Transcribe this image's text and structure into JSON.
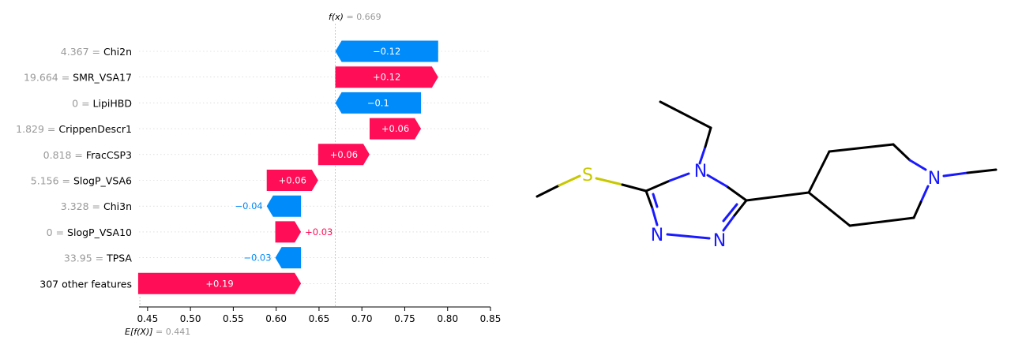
{
  "chart_data": {
    "type": "waterfall",
    "fx": {
      "label": "f(x)",
      "value": "0.669",
      "numeric": 0.669
    },
    "expected": {
      "label": "E[f(X)]",
      "value": "0.441",
      "numeric": 0.441
    },
    "xlim": [
      0.44,
      0.85
    ],
    "ticks": [
      "0.45",
      "0.50",
      "0.55",
      "0.60",
      "0.65",
      "0.70",
      "0.75",
      "0.80",
      "0.85"
    ],
    "features": [
      {
        "value": "4.367",
        "name": "Chi2n",
        "shap": -0.12,
        "label": "−0.12"
      },
      {
        "value": "19.664",
        "name": "SMR_VSA17",
        "shap": 0.12,
        "label": "+0.12"
      },
      {
        "value": "0",
        "name": "LipiHBD",
        "shap": -0.1,
        "label": "−0.1"
      },
      {
        "value": "1.829",
        "name": "CrippenDescr1",
        "shap": 0.06,
        "label": "+0.06"
      },
      {
        "value": "0.818",
        "name": "FracCSP3",
        "shap": 0.06,
        "label": "+0.06"
      },
      {
        "value": "5.156",
        "name": "SlogP_VSA6",
        "shap": 0.06,
        "label": "+0.06"
      },
      {
        "value": "3.328",
        "name": "Chi3n",
        "shap": -0.04,
        "label": "−0.04"
      },
      {
        "value": "0",
        "name": "SlogP_VSA10",
        "shap": 0.03,
        "label": "+0.03"
      },
      {
        "value": "33.95",
        "name": "TPSA",
        "shap": -0.03,
        "label": "−0.03"
      },
      {
        "value": "",
        "name": "307 other features",
        "shap": 0.19,
        "label": "+0.19"
      }
    ],
    "colors": {
      "positive": "#ff0d57",
      "negative": "#008bfb",
      "muted": "#999999"
    }
  },
  "molecule": {
    "atoms": {
      "S": "S",
      "N": "N"
    },
    "colors": {
      "sulfur": "#c8c800",
      "nitrogen": "#1a1aff",
      "carbon": "#000000"
    }
  }
}
